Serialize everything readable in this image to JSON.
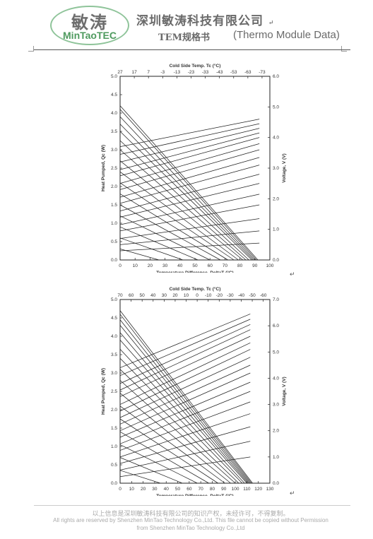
{
  "header": {
    "logo_cn": "敏涛",
    "logo_en": "MinTaoTEC",
    "company": "深圳敏涛科技有限公司",
    "doc_title": "TEM规格书",
    "doc_subtitle": "(Thermo Module Data)",
    "para_mark": "↵"
  },
  "footer": {
    "line1": "以上信息是深圳敏涛科技有限公司的知识产权，未经许可，不得复制。",
    "line2": "All rights are reserved by Shenzhen MinTao Technology Co.,Ltd.    This file cannot be copied without Permission",
    "line3": "from Shenzhen MinTao Technology Co.,Ltd"
  },
  "chart_data": [
    {
      "type": "line",
      "top_axis_label": "Cold Side Temp. Tc (°C)",
      "top_ticks": [
        "27",
        "17",
        "7",
        "-3",
        "-13",
        "-23",
        "-33",
        "-43",
        "-53",
        "-63",
        "-73"
      ],
      "xlabel": "Temperature Difference, DeltaT (°C)",
      "ylabel": "Heat Pumped, Qc (W)",
      "y2label": "Voltage, V (V)",
      "xlim": [
        0,
        100
      ],
      "ylim": [
        0,
        5.0
      ],
      "y2lim": [
        0,
        6.0
      ],
      "x_ticks": [
        0,
        10,
        20,
        30,
        40,
        50,
        60,
        70,
        80,
        90,
        100
      ],
      "y_ticks": [
        "0.0",
        "0.5",
        "1.0",
        "1.5",
        "2.0",
        "2.5",
        "3.0",
        "3.5",
        "4.0",
        "4.5",
        "5.0"
      ],
      "y2_ticks": [
        "0.0",
        "1.0",
        "2.0",
        "3.0",
        "4.0",
        "5.0",
        "6.0"
      ],
      "qc_lines": [
        [
          4.2,
          92
        ],
        [
          4.1,
          91
        ],
        [
          3.9,
          90
        ],
        [
          3.7,
          89
        ],
        [
          3.5,
          88
        ],
        [
          3.25,
          86
        ],
        [
          3.0,
          84
        ],
        [
          2.7,
          82
        ],
        [
          2.4,
          79
        ],
        [
          2.1,
          76
        ],
        [
          1.8,
          72
        ],
        [
          1.5,
          67
        ],
        [
          1.2,
          60
        ],
        [
          0.9,
          52
        ],
        [
          0.6,
          42
        ],
        [
          0.3,
          26
        ]
      ],
      "voltage_lines": [
        [
          3.7,
          4.6
        ],
        [
          3.45,
          4.45
        ],
        [
          3.2,
          4.3
        ],
        [
          2.95,
          4.15
        ],
        [
          2.75,
          4.0
        ],
        [
          2.5,
          3.8
        ],
        [
          2.3,
          3.6
        ],
        [
          2.05,
          3.35
        ],
        [
          1.85,
          3.1
        ],
        [
          1.6,
          2.8
        ],
        [
          1.4,
          2.5
        ],
        [
          1.15,
          2.15
        ],
        [
          0.95,
          1.8
        ],
        [
          0.7,
          1.35
        ],
        [
          0.5,
          0.95
        ],
        [
          0.3,
          0.55
        ]
      ]
    },
    {
      "type": "line",
      "top_axis_label": "Cold Side Temp. Tc (°C)",
      "top_ticks": [
        "70",
        "60",
        "50",
        "40",
        "30",
        "20",
        "10",
        "0",
        "-10",
        "-20",
        "-30",
        "-40",
        "-50",
        "-60"
      ],
      "xlabel": "Temperature Difference, DeltaT (°C)",
      "ylabel": "Heat Pumped, Qc (W)",
      "y2label": "Voltage, V (V)",
      "xlim": [
        0,
        130
      ],
      "ylim": [
        0,
        5.0
      ],
      "y2lim": [
        0,
        7.0
      ],
      "x_ticks": [
        0,
        10,
        20,
        30,
        40,
        50,
        60,
        70,
        80,
        90,
        100,
        110,
        120,
        130
      ],
      "y_ticks": [
        "0.0",
        "0.5",
        "1.0",
        "1.5",
        "2.0",
        "2.5",
        "3.0",
        "3.5",
        "4.0",
        "4.5",
        "5.0"
      ],
      "y2_ticks": [
        "0.0",
        "1.0",
        "2.0",
        "3.0",
        "4.0",
        "5.0",
        "6.0",
        "7.0"
      ],
      "qc_lines": [
        [
          4.7,
          115
        ],
        [
          4.6,
          114
        ],
        [
          4.45,
          113
        ],
        [
          4.3,
          112
        ],
        [
          4.1,
          111
        ],
        [
          3.9,
          110
        ],
        [
          3.65,
          108
        ],
        [
          3.4,
          106
        ],
        [
          3.1,
          103
        ],
        [
          2.8,
          100
        ],
        [
          2.45,
          96
        ],
        [
          2.1,
          91
        ],
        [
          1.75,
          85
        ],
        [
          1.4,
          77
        ],
        [
          1.05,
          67
        ],
        [
          0.7,
          54
        ],
        [
          0.35,
          35
        ]
      ],
      "voltage_lines": [
        [
          4.4,
          6.45
        ],
        [
          4.1,
          6.25
        ],
        [
          3.8,
          6.05
        ],
        [
          3.55,
          5.85
        ],
        [
          3.3,
          5.6
        ],
        [
          3.0,
          5.35
        ],
        [
          2.75,
          5.1
        ],
        [
          2.5,
          4.8
        ],
        [
          2.25,
          4.5
        ],
        [
          2.0,
          4.2
        ],
        [
          1.75,
          3.85
        ],
        [
          1.5,
          3.5
        ],
        [
          1.25,
          3.1
        ],
        [
          1.0,
          2.65
        ],
        [
          0.75,
          2.15
        ],
        [
          0.5,
          1.6
        ],
        [
          0.25,
          1.0
        ]
      ]
    }
  ]
}
